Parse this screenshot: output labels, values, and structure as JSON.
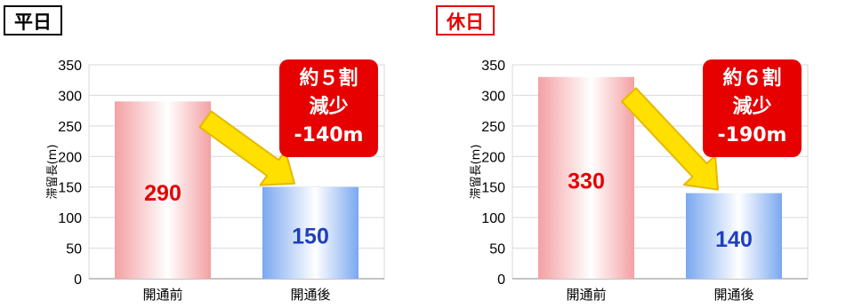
{
  "chart_data": [
    {
      "type": "bar",
      "label": "平日",
      "categories": [
        "開通前",
        "開通後"
      ],
      "values": [
        290,
        150
      ],
      "ylabel": "滞留長(m)",
      "ylim": [
        0,
        350
      ],
      "yticks": [
        "0",
        "50",
        "100",
        "150",
        "200",
        "250",
        "300",
        "350"
      ],
      "grid": true,
      "callout": [
        "約５割",
        "減少",
        "-140m"
      ],
      "bar_colors": [
        "#f4a0a3",
        "#7aa8f0"
      ],
      "label_colors": [
        "#e60000",
        "#1f3fbf"
      ]
    },
    {
      "type": "bar",
      "label": "休日",
      "categories": [
        "開通前",
        "開通後"
      ],
      "values": [
        330,
        140
      ],
      "ylabel": "滞留長(m)",
      "ylim": [
        0,
        350
      ],
      "yticks": [
        "0",
        "50",
        "100",
        "150",
        "200",
        "250",
        "300",
        "350"
      ],
      "grid": true,
      "callout": [
        "約６割",
        "減少",
        "-190m"
      ],
      "bar_colors": [
        "#f4a0a3",
        "#7aa8f0"
      ],
      "label_colors": [
        "#e60000",
        "#1f3fbf"
      ]
    }
  ],
  "colors": {
    "callout_bg": "#e60000",
    "callout_text": "#ffffff",
    "arrow_fill": "#ffe000",
    "arrow_stroke": "#e6b800",
    "grid": "#d9d9d9"
  }
}
